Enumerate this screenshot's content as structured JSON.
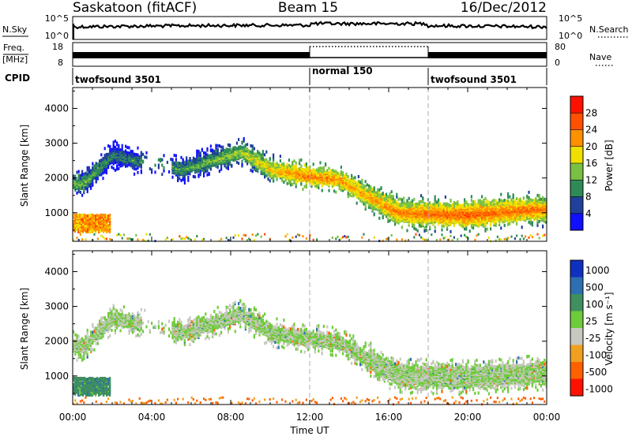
{
  "header": {
    "title": "Saskatoon (fitACF)",
    "beam": "Beam 15",
    "date": "16/Dec/2012"
  },
  "sky_panel": {
    "left_label": "N.Sky",
    "right_label": "N.Search",
    "left_ticks": [
      "10^5",
      "10^0"
    ],
    "right_ticks": [
      "10^5",
      "10^0"
    ]
  },
  "freq_panel": {
    "left_label_1": "Freq.",
    "left_label_2": "[MHz]",
    "right_label": "Nave",
    "left_ticks": [
      "18",
      "8"
    ],
    "right_ticks": [
      "80",
      "0"
    ]
  },
  "cpid_panel": {
    "label": "CPID",
    "segments": [
      {
        "name": "twofsound 3501",
        "start_hour": 0
      },
      {
        "name": "normal 150",
        "start_hour": 12
      },
      {
        "name": "twofsound 3501",
        "start_hour": 18
      }
    ]
  },
  "power_panel": {
    "ylabel": "Slant Range [km]",
    "yticks": [
      "4000",
      "3000",
      "2000",
      "1000"
    ],
    "colorbar_label": "Power [dB]",
    "colorbar_ticks": [
      "28",
      "24",
      "20",
      "16",
      "12",
      "8",
      "4"
    ],
    "colors": [
      "#1010ff",
      "#20409a",
      "#2e8b57",
      "#7ac043",
      "#f0e000",
      "#ff9000",
      "#ff5000",
      "#ff1000"
    ]
  },
  "velocity_panel": {
    "ylabel": "Slant Range [km]",
    "yticks": [
      "4000",
      "3000",
      "2000",
      "1000"
    ],
    "colorbar_label": "Velocity [m s⁻¹]",
    "colorbar_ticks": [
      "1000",
      "500",
      "100",
      "25",
      "-25",
      "-100",
      "-500",
      "-1000"
    ],
    "colors": [
      "#1030c0",
      "#2d6fb0",
      "#3f8f5f",
      "#6ecc3a",
      "#c8c8c0",
      "#f0a020",
      "#ff6000",
      "#ff1000"
    ]
  },
  "time_axis": {
    "xlabel": "Time UT",
    "ticks": [
      "00:00",
      "04:00",
      "08:00",
      "12:00",
      "16:00",
      "20:00",
      "00:00"
    ]
  },
  "chart_data": {
    "type": "heatmap",
    "title": "Saskatoon (fitACF)",
    "subtitle": "Beam 15",
    "date": "16/Dec/2012",
    "xlabel": "Time UT",
    "xlim_hours": [
      0,
      24
    ],
    "ylabel": "Slant Range [km]",
    "ylim_km": [
      180,
      4600
    ],
    "cpid": [
      {
        "mode": "twofsound 3501",
        "start": "00:00",
        "end": "12:00"
      },
      {
        "mode": "normal 150",
        "start": "12:00",
        "end": "18:00"
      },
      {
        "mode": "twofsound 3501",
        "start": "18:00",
        "end": "24:00"
      }
    ],
    "frequency_mhz": {
      "ylim": [
        8,
        18
      ],
      "twofsound": "alternating ~10-12",
      "normal": "~10"
    },
    "power_db": {
      "range": [
        0,
        30
      ],
      "colorbar": [
        4,
        8,
        12,
        16,
        20,
        24,
        28
      ]
    },
    "velocity_ms": {
      "range": [
        -1000,
        1000
      ],
      "colorbar": [
        1000,
        500,
        100,
        25,
        -25,
        -100,
        -500,
        -1000
      ]
    },
    "echo_band": [
      {
        "hour": 0.5,
        "range_km": 1900,
        "power": 14
      },
      {
        "hour": 2.0,
        "range_km": 2700,
        "power": 10
      },
      {
        "hour": 5.5,
        "range_km": 2300,
        "power": 12
      },
      {
        "hour": 8.5,
        "range_km": 2800,
        "power": 16
      },
      {
        "hour": 10.0,
        "range_km": 2300,
        "power": 20
      },
      {
        "hour": 12.0,
        "range_km": 2100,
        "power": 24
      },
      {
        "hour": 13.5,
        "range_km": 2000,
        "power": 22
      },
      {
        "hour": 15.0,
        "range_km": 1500,
        "power": 22
      },
      {
        "hour": 16.5,
        "range_km": 1050,
        "power": 24
      },
      {
        "hour": 20.0,
        "range_km": 1000,
        "power": 26
      },
      {
        "hour": 23.5,
        "range_km": 1150,
        "power": 24
      }
    ],
    "near_range_patch": {
      "hours": [
        0,
        1.9
      ],
      "range_km": [
        500,
        1000
      ],
      "power": 24,
      "velocity": 100
    }
  }
}
